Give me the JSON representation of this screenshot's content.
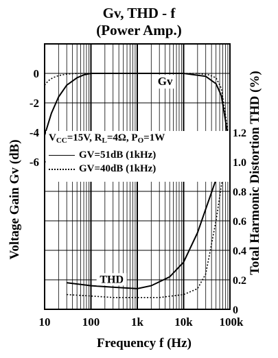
{
  "chart_data": {
    "type": "line",
    "title": "Gv, THD - f",
    "subtitle": "(Power Amp.)",
    "xlabel": "Frequency f (Hz)",
    "ylabel_left": "Voltage Gain Gv (dB)",
    "ylabel_right": "Total Harmonic Distortion THD (%)",
    "x_scale": "log",
    "xlim": [
      10,
      100000
    ],
    "x_ticks": [
      "10",
      "100",
      "1k",
      "10k",
      "100k"
    ],
    "y_left_range": [
      -16,
      2
    ],
    "y_left_ticks": [
      "0",
      "-2",
      "-4",
      "-6"
    ],
    "y_right_range": [
      0,
      1.8
    ],
    "y_right_ticks": [
      "0",
      "0.2",
      "0.4",
      "0.6",
      "0.8",
      "1.0",
      "1.2"
    ],
    "grid": true,
    "legend": {
      "placement": "center-left",
      "conditions": {
        "vcc": "V",
        "vcc_sub": "CC",
        "vcc_val": "=15V, R",
        "rl_sub": "L",
        "rl_val": "=4Ω, P",
        "po_sub": "O",
        "po_val": "=1W"
      },
      "entries": [
        {
          "label": "GV=51dB (1kHz)",
          "style": "solid"
        },
        {
          "label": "GV=40dB (1kHz)",
          "style": "dotted"
        }
      ]
    },
    "annotations": [
      "Gv",
      "THD"
    ],
    "series": [
      {
        "axis": "left",
        "group": "Gv",
        "style": "solid",
        "x": [
          10,
          14,
          20,
          30,
          50,
          70,
          100,
          200,
          1000,
          10000,
          30000,
          50000,
          65000,
          80000,
          100000
        ],
        "y": [
          -4.2,
          -2.7,
          -1.6,
          -0.8,
          -0.3,
          -0.1,
          0,
          0,
          0,
          0,
          -0.2,
          -0.7,
          -1.5,
          -3.2,
          -5.5
        ]
      },
      {
        "axis": "left",
        "group": "Gv",
        "style": "dotted",
        "x": [
          10,
          12,
          15,
          20,
          30,
          50,
          1000,
          20000,
          35000,
          50000,
          65000,
          80000,
          100000
        ],
        "y": [
          -0.8,
          -0.5,
          -0.3,
          -0.15,
          -0.05,
          0,
          0,
          0,
          -0.1,
          -0.3,
          -1.0,
          -2.8,
          -5.0
        ]
      },
      {
        "axis": "right",
        "group": "THD",
        "style": "solid",
        "x": [
          30,
          100,
          300,
          1000,
          2000,
          5000,
          10000,
          20000,
          30000,
          50000,
          70000,
          100000
        ],
        "y": [
          0.18,
          0.16,
          0.15,
          0.14,
          0.16,
          0.22,
          0.32,
          0.52,
          0.68,
          0.88,
          0.98,
          1.02
        ]
      },
      {
        "axis": "right",
        "group": "THD",
        "style": "dotted",
        "x": [
          30,
          100,
          300,
          1000,
          3000,
          10000,
          20000,
          30000,
          50000,
          70000,
          100000
        ],
        "y": [
          0.1,
          0.09,
          0.08,
          0.08,
          0.08,
          0.1,
          0.14,
          0.24,
          0.6,
          0.9,
          1.0
        ]
      }
    ]
  }
}
